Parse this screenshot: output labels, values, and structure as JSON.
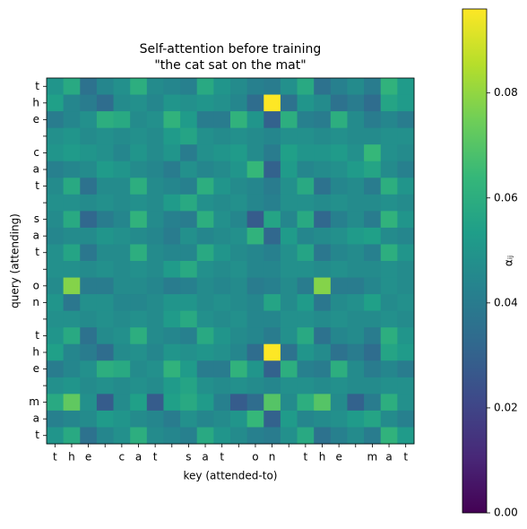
{
  "chart_data": {
    "type": "heatmap",
    "title": "Self-attention before training",
    "subtitle": "\"the cat sat on the mat\"",
    "x_label": "key (attended-to)",
    "y_label": "query (attending)",
    "colorbar_label": "αᵢⱼ",
    "colormap": "viridis",
    "x_categories": [
      "t",
      "h",
      "e",
      null,
      "c",
      "a",
      "t",
      null,
      "s",
      "a",
      "t",
      null,
      "o",
      "n",
      null,
      "t",
      "h",
      "e",
      null,
      "m",
      "a",
      "t"
    ],
    "y_categories": [
      "t",
      "h",
      "e",
      null,
      "c",
      "a",
      "t",
      null,
      "s",
      "a",
      "t",
      null,
      "o",
      "n",
      null,
      "t",
      "h",
      "e",
      null,
      "m",
      "a",
      "t"
    ],
    "clim": [
      0,
      0.096
    ],
    "cticks": [
      {
        "value": 0,
        "label": "0.00"
      },
      {
        "value": 0.02,
        "label": "0.02"
      },
      {
        "value": 0.04,
        "label": "0.04"
      },
      {
        "value": 0.06,
        "label": "0.06"
      },
      {
        "value": 0.08,
        "label": "0.08"
      }
    ],
    "values": [
      [
        0.05,
        0.058,
        0.036,
        0.044,
        0.048,
        0.06,
        0.046,
        0.044,
        0.042,
        0.058,
        0.05,
        0.046,
        0.042,
        0.04,
        0.048,
        0.058,
        0.036,
        0.042,
        0.046,
        0.04,
        0.062,
        0.052
      ],
      [
        0.054,
        0.044,
        0.04,
        0.034,
        0.046,
        0.048,
        0.044,
        0.05,
        0.048,
        0.05,
        0.048,
        0.044,
        0.034,
        0.096,
        0.036,
        0.05,
        0.046,
        0.036,
        0.04,
        0.034,
        0.056,
        0.052
      ],
      [
        0.04,
        0.044,
        0.048,
        0.06,
        0.058,
        0.046,
        0.048,
        0.062,
        0.052,
        0.04,
        0.04,
        0.062,
        0.05,
        0.03,
        0.06,
        0.042,
        0.04,
        0.06,
        0.046,
        0.04,
        0.044,
        0.04
      ],
      [
        0.048,
        0.05,
        0.046,
        0.048,
        0.046,
        0.048,
        0.046,
        0.052,
        0.056,
        0.048,
        0.046,
        0.048,
        0.046,
        0.044,
        0.048,
        0.048,
        0.046,
        0.048,
        0.046,
        0.046,
        0.048,
        0.048
      ],
      [
        0.05,
        0.052,
        0.05,
        0.048,
        0.044,
        0.05,
        0.046,
        0.05,
        0.04,
        0.048,
        0.05,
        0.052,
        0.046,
        0.04,
        0.054,
        0.05,
        0.05,
        0.052,
        0.048,
        0.064,
        0.048,
        0.046
      ],
      [
        0.042,
        0.044,
        0.046,
        0.052,
        0.05,
        0.046,
        0.044,
        0.04,
        0.048,
        0.044,
        0.046,
        0.05,
        0.064,
        0.03,
        0.052,
        0.044,
        0.046,
        0.048,
        0.052,
        0.056,
        0.046,
        0.042
      ],
      [
        0.046,
        0.058,
        0.036,
        0.046,
        0.046,
        0.06,
        0.046,
        0.044,
        0.042,
        0.06,
        0.05,
        0.046,
        0.044,
        0.04,
        0.048,
        0.058,
        0.036,
        0.044,
        0.046,
        0.04,
        0.06,
        0.05
      ],
      [
        0.048,
        0.048,
        0.046,
        0.048,
        0.046,
        0.048,
        0.046,
        0.052,
        0.058,
        0.048,
        0.046,
        0.048,
        0.044,
        0.042,
        0.048,
        0.048,
        0.046,
        0.048,
        0.046,
        0.046,
        0.048,
        0.046
      ],
      [
        0.046,
        0.058,
        0.032,
        0.04,
        0.044,
        0.062,
        0.046,
        0.042,
        0.04,
        0.06,
        0.048,
        0.044,
        0.028,
        0.056,
        0.044,
        0.058,
        0.032,
        0.042,
        0.046,
        0.04,
        0.062,
        0.05
      ],
      [
        0.044,
        0.046,
        0.046,
        0.05,
        0.048,
        0.046,
        0.044,
        0.04,
        0.048,
        0.044,
        0.046,
        0.048,
        0.062,
        0.032,
        0.052,
        0.044,
        0.046,
        0.048,
        0.052,
        0.054,
        0.046,
        0.044
      ],
      [
        0.048,
        0.056,
        0.038,
        0.046,
        0.046,
        0.06,
        0.046,
        0.044,
        0.044,
        0.058,
        0.05,
        0.046,
        0.044,
        0.042,
        0.048,
        0.056,
        0.038,
        0.044,
        0.046,
        0.042,
        0.06,
        0.05
      ],
      [
        0.048,
        0.048,
        0.046,
        0.048,
        0.046,
        0.048,
        0.046,
        0.052,
        0.058,
        0.048,
        0.046,
        0.048,
        0.044,
        0.044,
        0.048,
        0.048,
        0.046,
        0.048,
        0.046,
        0.046,
        0.048,
        0.046
      ],
      [
        0.046,
        0.078,
        0.04,
        0.04,
        0.046,
        0.046,
        0.044,
        0.04,
        0.042,
        0.046,
        0.044,
        0.046,
        0.04,
        0.042,
        0.046,
        0.04,
        0.078,
        0.04,
        0.04,
        0.044,
        0.048,
        0.046
      ],
      [
        0.05,
        0.038,
        0.048,
        0.048,
        0.044,
        0.044,
        0.046,
        0.05,
        0.05,
        0.046,
        0.048,
        0.046,
        0.044,
        0.056,
        0.046,
        0.052,
        0.038,
        0.046,
        0.048,
        0.054,
        0.046,
        0.048
      ],
      [
        0.048,
        0.048,
        0.046,
        0.048,
        0.046,
        0.048,
        0.046,
        0.052,
        0.058,
        0.048,
        0.046,
        0.048,
        0.044,
        0.044,
        0.048,
        0.048,
        0.046,
        0.048,
        0.046,
        0.046,
        0.048,
        0.046
      ],
      [
        0.05,
        0.058,
        0.036,
        0.046,
        0.048,
        0.06,
        0.046,
        0.044,
        0.042,
        0.058,
        0.05,
        0.046,
        0.044,
        0.04,
        0.048,
        0.058,
        0.036,
        0.044,
        0.046,
        0.04,
        0.06,
        0.05
      ],
      [
        0.054,
        0.044,
        0.04,
        0.034,
        0.046,
        0.048,
        0.044,
        0.05,
        0.048,
        0.05,
        0.048,
        0.044,
        0.034,
        0.096,
        0.036,
        0.05,
        0.046,
        0.036,
        0.04,
        0.034,
        0.056,
        0.052
      ],
      [
        0.04,
        0.044,
        0.048,
        0.06,
        0.058,
        0.046,
        0.048,
        0.062,
        0.052,
        0.04,
        0.04,
        0.062,
        0.05,
        0.03,
        0.06,
        0.042,
        0.04,
        0.06,
        0.046,
        0.04,
        0.044,
        0.04
      ],
      [
        0.048,
        0.05,
        0.046,
        0.048,
        0.046,
        0.048,
        0.046,
        0.052,
        0.056,
        0.048,
        0.046,
        0.048,
        0.046,
        0.044,
        0.048,
        0.048,
        0.046,
        0.048,
        0.046,
        0.046,
        0.048,
        0.048
      ],
      [
        0.058,
        0.072,
        0.048,
        0.028,
        0.046,
        0.054,
        0.028,
        0.054,
        0.058,
        0.052,
        0.042,
        0.028,
        0.034,
        0.07,
        0.046,
        0.06,
        0.07,
        0.046,
        0.03,
        0.04,
        0.06,
        0.048
      ],
      [
        0.042,
        0.044,
        0.046,
        0.052,
        0.05,
        0.046,
        0.044,
        0.04,
        0.048,
        0.044,
        0.046,
        0.05,
        0.064,
        0.03,
        0.052,
        0.044,
        0.046,
        0.048,
        0.052,
        0.056,
        0.046,
        0.042
      ],
      [
        0.05,
        0.058,
        0.036,
        0.044,
        0.048,
        0.06,
        0.046,
        0.044,
        0.042,
        0.058,
        0.05,
        0.046,
        0.042,
        0.04,
        0.048,
        0.058,
        0.036,
        0.042,
        0.046,
        0.04,
        0.062,
        0.052
      ]
    ]
  }
}
